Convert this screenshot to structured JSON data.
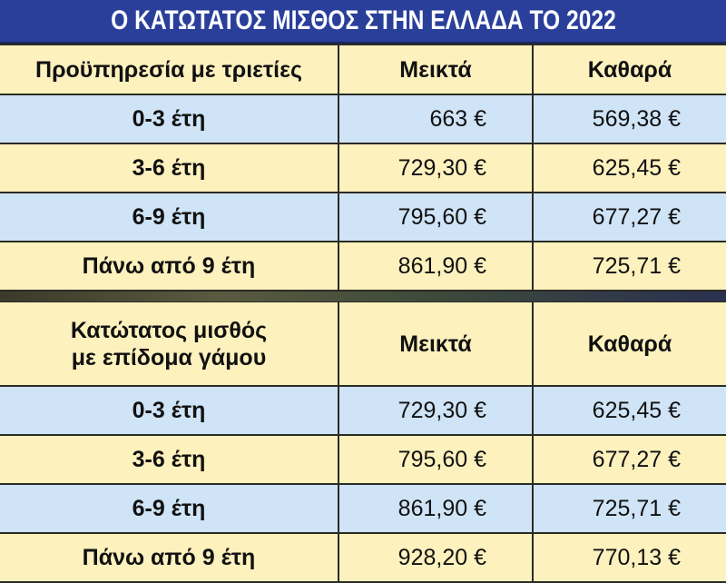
{
  "header": {
    "title": "Ο ΚΑΤΩΤΑΤΟΣ ΜΙΣΘΟΣ ΣΤΗΝ ΕΛΛΑΔΑ ΤΟ 2022"
  },
  "table1": {
    "header": [
      "Προϋπηρεσία με τριετίες",
      "Μεικτά",
      "Καθαρά"
    ],
    "rows": [
      [
        "0-3 έτη",
        "663 €",
        "569,38 €"
      ],
      [
        "3-6 έτη",
        "729,30 €",
        "625,45 €"
      ],
      [
        "6-9 έτη",
        "795,60 €",
        "677,27 €"
      ],
      [
        "Πάνω από 9 έτη",
        "861,90 €",
        "725,71 €"
      ]
    ]
  },
  "table2": {
    "header": [
      [
        "Κατώτατος μισθός",
        "με επίδομα γάμου"
      ],
      "Μεικτά",
      "Καθαρά"
    ],
    "rows": [
      [
        "0-3 έτη",
        "729,30 €",
        "625,45 €"
      ],
      [
        "3-6 έτη",
        "795,60 €",
        "677,27 €"
      ],
      [
        "6-9 έτη",
        "861,90 €",
        "725,71 €"
      ],
      [
        "Πάνω από 9 έτη",
        "928,20 €",
        "770,13 €"
      ]
    ]
  }
}
